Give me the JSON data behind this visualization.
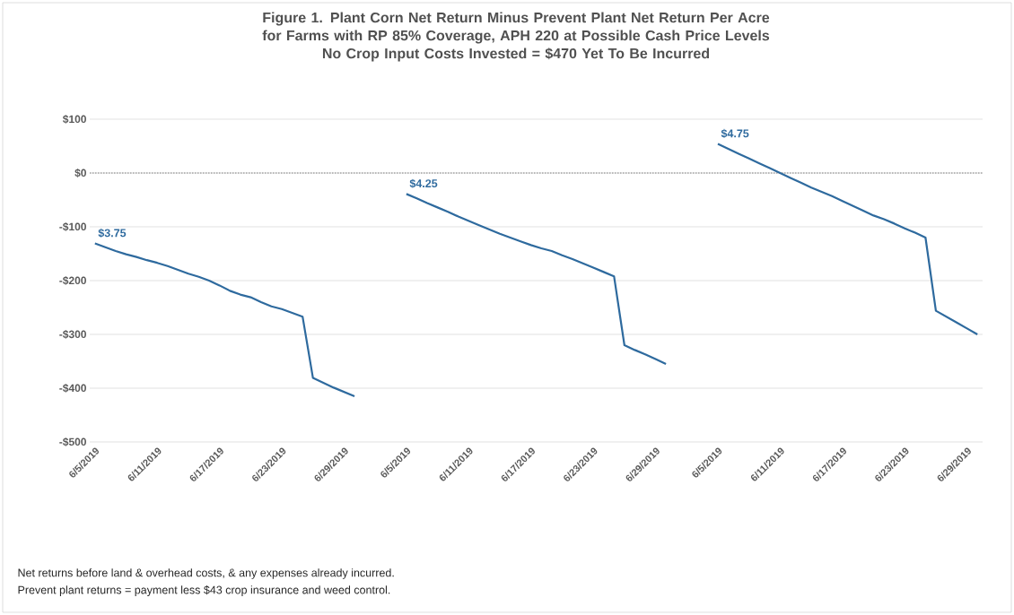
{
  "chart_data": {
    "type": "line",
    "title": "Figure 1. Plant Corn Net Return Minus Prevent Plant Net Return Per Acre for Farms with RP 85% Coverage, APH 220 at Possible Cash Price Levels",
    "subtitle": "No Crop Input Costs Invested = $470 Yet  To Be Incurred",
    "annotations": [
      "Net returns  before land & overhead costs, & any expenses already incurred.",
      "Prevent plant returns = payment less $43 crop insurance and weed control."
    ],
    "categories": [
      "6/5/2019",
      null,
      null,
      null,
      null,
      null,
      "6/11/2019",
      null,
      null,
      null,
      null,
      null,
      "6/17/2019",
      null,
      null,
      null,
      null,
      null,
      "6/23/2019",
      null,
      null,
      null,
      null,
      null,
      "6/29/2019",
      null,
      null,
      null,
      null,
      null,
      "6/5/2019",
      null,
      null,
      null,
      null,
      null,
      "6/11/2019",
      null,
      null,
      null,
      null,
      null,
      "6/17/2019",
      null,
      null,
      null,
      null,
      null,
      "6/23/2019",
      null,
      null,
      null,
      null,
      null,
      "6/29/2019",
      null,
      null,
      null,
      null,
      null,
      "6/5/2019",
      null,
      null,
      null,
      null,
      null,
      "6/11/2019",
      null,
      null,
      null,
      null,
      null,
      "6/17/2019",
      null,
      null,
      null,
      null,
      null,
      "6/23/2019",
      null,
      null,
      null,
      null,
      null,
      "6/29/2019",
      null
    ],
    "series": [
      {
        "name": "$3.75",
        "color": "#2e6a9e",
        "values": [
          -131,
          -138,
          -145,
          -151,
          -156,
          -162,
          -167,
          -173,
          -180,
          -187,
          -193,
          -200,
          -209,
          -219,
          -226,
          -231,
          -240,
          -248,
          -253,
          -260,
          -267,
          -381,
          -390,
          -399,
          -407,
          -415,
          null,
          null,
          null,
          null,
          null,
          null,
          null,
          null,
          null,
          null,
          null,
          null,
          null,
          null,
          null,
          null,
          null,
          null,
          null,
          null,
          null,
          null,
          null,
          null,
          null,
          null,
          null,
          null,
          null,
          null,
          null,
          null,
          null,
          null,
          null,
          null,
          null,
          null,
          null,
          null,
          null,
          null,
          null,
          null,
          null,
          null,
          null,
          null,
          null,
          null,
          null,
          null,
          null,
          null,
          null,
          null,
          null,
          null,
          null,
          null
        ]
      },
      {
        "name": "$4.25",
        "color": "#2e6a9e",
        "values": [
          null,
          null,
          null,
          null,
          null,
          null,
          null,
          null,
          null,
          null,
          null,
          null,
          null,
          null,
          null,
          null,
          null,
          null,
          null,
          null,
          null,
          null,
          null,
          null,
          null,
          null,
          null,
          null,
          null,
          null,
          -39,
          -47,
          -56,
          -64,
          -72,
          -81,
          -89,
          -97,
          -105,
          -113,
          -120,
          -127,
          -134,
          -140,
          -145,
          -153,
          -160,
          -168,
          -176,
          -184,
          -192,
          -320,
          -329,
          -337,
          -346,
          -355,
          null,
          null,
          null,
          null,
          null,
          null,
          null,
          null,
          null,
          null,
          null,
          null,
          null,
          null,
          null,
          null,
          null,
          null,
          null,
          null,
          null,
          null,
          null,
          null,
          null,
          null,
          null,
          null,
          null,
          null
        ]
      },
      {
        "name": "$4.75",
        "color": "#2e6a9e",
        "values": [
          null,
          null,
          null,
          null,
          null,
          null,
          null,
          null,
          null,
          null,
          null,
          null,
          null,
          null,
          null,
          null,
          null,
          null,
          null,
          null,
          null,
          null,
          null,
          null,
          null,
          null,
          null,
          null,
          null,
          null,
          null,
          null,
          null,
          null,
          null,
          null,
          null,
          null,
          null,
          null,
          null,
          null,
          null,
          null,
          null,
          null,
          null,
          null,
          null,
          null,
          null,
          null,
          null,
          null,
          null,
          null,
          null,
          null,
          null,
          null,
          54,
          45,
          36,
          27,
          18,
          9,
          0,
          -9,
          -18,
          -27,
          -35,
          -43,
          -52,
          -61,
          -70,
          -79,
          -86,
          -94,
          -103,
          -111,
          -120,
          -256,
          -267,
          -278,
          -289,
          -300
        ]
      }
    ],
    "ylim": [
      -500,
      100
    ],
    "yticks": [
      {
        "value": 100,
        "label": "$100"
      },
      {
        "value": 0,
        "label": "$0"
      },
      {
        "value": -100,
        "label": "-$100"
      },
      {
        "value": -200,
        "label": "-$200"
      },
      {
        "value": -300,
        "label": "-$300"
      },
      {
        "value": -400,
        "label": "-$400"
      },
      {
        "value": -500,
        "label": "-$500"
      }
    ],
    "grid": "y",
    "marker": "none",
    "ref_lines": [
      {
        "axis": "y",
        "value": 0,
        "line_style": "dotted",
        "color": "#a6a6a6"
      }
    ]
  }
}
